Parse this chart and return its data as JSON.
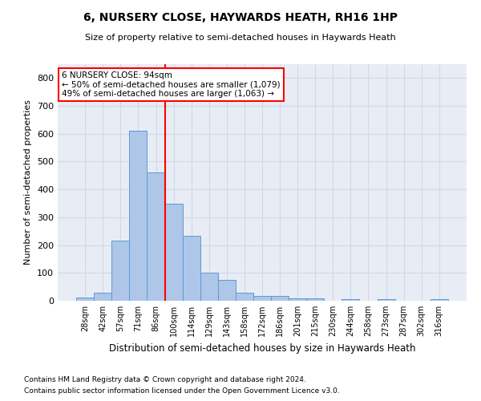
{
  "title": "6, NURSERY CLOSE, HAYWARDS HEATH, RH16 1HP",
  "subtitle": "Size of property relative to semi-detached houses in Haywards Heath",
  "xlabel": "Distribution of semi-detached houses by size in Haywards Heath",
  "ylabel": "Number of semi-detached properties",
  "categories": [
    "28sqm",
    "42sqm",
    "57sqm",
    "71sqm",
    "86sqm",
    "100sqm",
    "114sqm",
    "129sqm",
    "143sqm",
    "158sqm",
    "172sqm",
    "186sqm",
    "201sqm",
    "215sqm",
    "230sqm",
    "244sqm",
    "258sqm",
    "273sqm",
    "287sqm",
    "302sqm",
    "316sqm"
  ],
  "values": [
    12,
    30,
    215,
    610,
    460,
    350,
    233,
    100,
    75,
    30,
    17,
    17,
    10,
    8,
    0,
    5,
    0,
    5,
    0,
    0,
    5
  ],
  "bar_color": "#aec6e8",
  "bar_edge_color": "#5b9bd5",
  "redline_x": 4.5,
  "annotation_text": "6 NURSERY CLOSE: 94sqm\n← 50% of semi-detached houses are smaller (1,079)\n49% of semi-detached houses are larger (1,063) →",
  "annotation_box_color": "#ffffff",
  "annotation_box_edge_color": "#ff0000",
  "ylim": [
    0,
    850
  ],
  "yticks": [
    0,
    100,
    200,
    300,
    400,
    500,
    600,
    700,
    800
  ],
  "footnote1": "Contains HM Land Registry data © Crown copyright and database right 2024.",
  "footnote2": "Contains public sector information licensed under the Open Government Licence v3.0.",
  "grid_color": "#d0d8e8",
  "bg_color": "#e8edf5"
}
